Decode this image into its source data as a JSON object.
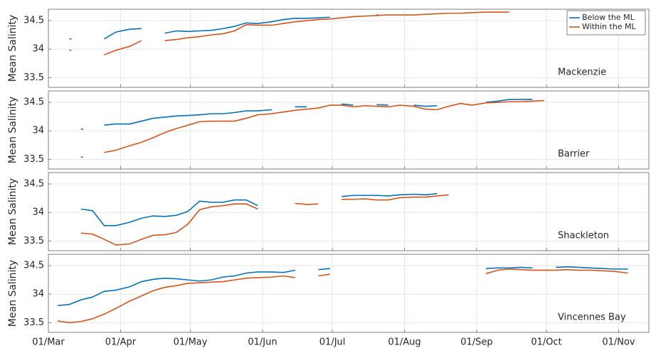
{
  "chart_data": [
    {
      "type": "line",
      "ylabel": "Mean Salinity",
      "annotation": "Mackenzie",
      "legend": "upper right",
      "grid": true,
      "x": [
        "05/Mar",
        "10/Mar",
        "15/Mar",
        "20/Mar",
        "25/Mar",
        "30/Mar",
        "05/Apr",
        "10/Apr",
        "15/Apr",
        "20/Apr",
        "25/Apr",
        "30/Apr",
        "05/May",
        "10/May",
        "15/May",
        "20/May",
        "25/May",
        "30/May",
        "05/Jun",
        "10/Jun",
        "15/Jun",
        "20/Jun",
        "25/Jun",
        "30/Jun",
        "05/Jul",
        "10/Jul",
        "15/Jul",
        "20/Jul",
        "25/Jul",
        "30/Jul",
        "05/Aug",
        "10/Aug",
        "15/Aug",
        "20/Aug",
        "25/Aug",
        "30/Aug",
        "05/Sep",
        "10/Sep",
        "15/Sep",
        "20/Sep",
        "25/Sep",
        "30/Sep",
        "05/Oct",
        "10/Oct",
        "15/Oct",
        "20/Oct",
        "25/Oct",
        "30/Oct",
        "05/Nov"
      ],
      "xlim": [
        "01/Mar",
        "14/Nov"
      ],
      "xticks": [
        "01/Mar",
        "01/Apr",
        "01/May",
        "01/Jun",
        "01/Jul",
        "01/Aug",
        "01/Sep",
        "01/Oct",
        "01/Nov"
      ],
      "ylim": [
        33.33,
        34.7
      ],
      "yticks": [
        33.5,
        34,
        34.5
      ],
      "series": [
        {
          "name": "Below the ML",
          "color": "#0072bd",
          "values": [
            null,
            34.18,
            null,
            null,
            34.18,
            34.3,
            34.35,
            34.36,
            null,
            34.28,
            34.32,
            34.31,
            34.32,
            34.33,
            34.36,
            34.4,
            34.46,
            34.45,
            34.48,
            34.52,
            34.54,
            34.54,
            34.55,
            34.56,
            null,
            null,
            null,
            34.6,
            null,
            null,
            null,
            null,
            null,
            null,
            null,
            null,
            null,
            null,
            null,
            null,
            null,
            null,
            null,
            null,
            null,
            null,
            null,
            null,
            null
          ]
        },
        {
          "name": "Within the ML",
          "color": "#d95319",
          "values": [
            null,
            33.98,
            null,
            null,
            33.9,
            33.98,
            34.05,
            34.15,
            null,
            34.15,
            34.17,
            34.2,
            34.22,
            34.25,
            34.27,
            34.32,
            34.43,
            34.42,
            34.42,
            34.45,
            34.48,
            34.5,
            34.52,
            34.53,
            34.55,
            34.57,
            34.58,
            34.59,
            34.6,
            34.6,
            34.6,
            34.61,
            34.62,
            34.63,
            34.63,
            34.64,
            34.65,
            34.65,
            34.65,
            null,
            null,
            null,
            null,
            null,
            null,
            null,
            null,
            null,
            null
          ]
        }
      ]
    },
    {
      "type": "line",
      "ylabel": "Mean Salinity",
      "annotation": "Barrier",
      "grid": true,
      "x": [
        "05/Mar",
        "10/Mar",
        "15/Mar",
        "20/Mar",
        "25/Mar",
        "30/Mar",
        "05/Apr",
        "10/Apr",
        "15/Apr",
        "20/Apr",
        "25/Apr",
        "30/Apr",
        "05/May",
        "10/May",
        "15/May",
        "20/May",
        "25/May",
        "30/May",
        "05/Jun",
        "10/Jun",
        "15/Jun",
        "20/Jun",
        "25/Jun",
        "30/Jun",
        "05/Jul",
        "10/Jul",
        "15/Jul",
        "20/Jul",
        "25/Jul",
        "30/Jul",
        "05/Aug",
        "10/Aug",
        "15/Aug",
        "20/Aug",
        "25/Aug",
        "30/Aug",
        "05/Sep",
        "10/Sep",
        "15/Sep",
        "20/Sep",
        "25/Sep",
        "30/Sep",
        "05/Oct",
        "10/Oct",
        "15/Oct",
        "20/Oct",
        "25/Oct",
        "30/Oct",
        "05/Nov"
      ],
      "xlim": [
        "01/Mar",
        "14/Nov"
      ],
      "xticks": [
        "01/Mar",
        "01/Apr",
        "01/May",
        "01/Jun",
        "01/Jul",
        "01/Aug",
        "01/Sep",
        "01/Oct",
        "01/Nov"
      ],
      "ylim": [
        33.33,
        34.7
      ],
      "yticks": [
        33.5,
        34,
        34.5
      ],
      "series": [
        {
          "color": "#0072bd",
          "values": [
            null,
            null,
            34.03,
            null,
            34.1,
            34.12,
            34.12,
            34.17,
            34.22,
            34.24,
            34.26,
            34.27,
            34.28,
            34.3,
            34.3,
            34.32,
            34.35,
            34.35,
            34.37,
            null,
            34.42,
            34.42,
            null,
            null,
            34.47,
            34.45,
            null,
            34.46,
            34.45,
            null,
            34.45,
            34.43,
            34.44,
            null,
            34.48,
            null,
            34.5,
            34.52,
            34.55,
            34.55,
            34.55,
            null,
            null,
            null,
            null,
            null,
            null,
            null,
            null
          ]
        },
        {
          "color": "#d95319",
          "values": [
            null,
            null,
            33.54,
            null,
            33.62,
            33.66,
            33.74,
            33.8,
            33.88,
            33.97,
            34.04,
            34.1,
            34.16,
            34.17,
            34.17,
            34.17,
            34.22,
            34.28,
            34.3,
            34.33,
            34.36,
            34.38,
            34.4,
            34.45,
            34.45,
            34.42,
            34.44,
            34.43,
            34.42,
            34.45,
            34.43,
            34.38,
            34.37,
            34.43,
            34.48,
            34.45,
            34.49,
            34.5,
            34.51,
            34.51,
            34.52,
            34.53,
            null,
            null,
            null,
            null,
            null,
            null,
            null
          ]
        }
      ]
    },
    {
      "type": "line",
      "ylabel": "Mean Salinity",
      "annotation": "Shackleton",
      "grid": true,
      "x": [
        "05/Mar",
        "10/Mar",
        "15/Mar",
        "20/Mar",
        "25/Mar",
        "30/Mar",
        "05/Apr",
        "10/Apr",
        "15/Apr",
        "20/Apr",
        "25/Apr",
        "30/Apr",
        "05/May",
        "10/May",
        "15/May",
        "20/May",
        "25/May",
        "30/May",
        "05/Jun",
        "10/Jun",
        "15/Jun",
        "20/Jun",
        "25/Jun",
        "30/Jun",
        "05/Jul",
        "10/Jul",
        "15/Jul",
        "20/Jul",
        "25/Jul",
        "30/Jul",
        "05/Aug",
        "10/Aug",
        "15/Aug",
        "20/Aug",
        "25/Aug",
        "30/Aug",
        "05/Sep",
        "10/Sep",
        "15/Sep",
        "20/Sep",
        "25/Sep",
        "30/Sep",
        "05/Oct",
        "10/Oct",
        "15/Oct",
        "20/Oct",
        "25/Oct",
        "30/Oct",
        "05/Nov"
      ],
      "xlim": [
        "01/Mar",
        "14/Nov"
      ],
      "xticks": [
        "01/Mar",
        "01/Apr",
        "01/May",
        "01/Jun",
        "01/Jul",
        "01/Aug",
        "01/Sep",
        "01/Oct",
        "01/Nov"
      ],
      "ylim": [
        33.33,
        34.7
      ],
      "yticks": [
        33.5,
        34,
        34.5
      ],
      "series": [
        {
          "color": "#0072bd",
          "values": [
            null,
            null,
            34.06,
            34.03,
            33.77,
            33.77,
            33.83,
            33.9,
            33.94,
            33.93,
            33.95,
            34.02,
            34.2,
            34.18,
            34.18,
            34.22,
            34.22,
            34.12,
            null,
            null,
            null,
            null,
            null,
            null,
            34.28,
            34.3,
            34.3,
            34.3,
            34.29,
            34.31,
            34.32,
            34.31,
            34.33,
            null,
            null,
            null,
            null,
            null,
            null,
            null,
            null,
            null,
            null,
            null,
            null,
            null,
            null,
            null,
            null
          ]
        },
        {
          "color": "#d95319",
          "values": [
            null,
            null,
            33.64,
            33.62,
            33.53,
            33.43,
            33.45,
            33.53,
            33.6,
            33.61,
            33.65,
            33.8,
            34.05,
            34.1,
            34.12,
            34.15,
            34.15,
            34.06,
            null,
            null,
            34.16,
            34.14,
            34.15,
            null,
            34.23,
            34.23,
            34.24,
            34.22,
            34.22,
            34.26,
            34.27,
            34.27,
            34.29,
            34.31,
            null,
            null,
            null,
            null,
            null,
            null,
            null,
            null,
            null,
            null,
            null,
            null,
            null,
            null,
            null
          ]
        }
      ]
    },
    {
      "type": "line",
      "ylabel": "Mean Salinity",
      "annotation": "Vincennes Bay",
      "grid": true,
      "x": [
        "05/Mar",
        "10/Mar",
        "15/Mar",
        "20/Mar",
        "25/Mar",
        "30/Mar",
        "05/Apr",
        "10/Apr",
        "15/Apr",
        "20/Apr",
        "25/Apr",
        "30/Apr",
        "05/May",
        "10/May",
        "15/May",
        "20/May",
        "25/May",
        "30/May",
        "05/Jun",
        "10/Jun",
        "15/Jun",
        "20/Jun",
        "25/Jun",
        "30/Jun",
        "05/Jul",
        "10/Jul",
        "15/Jul",
        "20/Jul",
        "25/Jul",
        "30/Jul",
        "05/Aug",
        "10/Aug",
        "15/Aug",
        "20/Aug",
        "25/Aug",
        "30/Aug",
        "05/Sep",
        "10/Sep",
        "15/Sep",
        "20/Sep",
        "25/Sep",
        "30/Sep",
        "05/Oct",
        "10/Oct",
        "15/Oct",
        "20/Oct",
        "25/Oct",
        "30/Oct",
        "05/Nov"
      ],
      "xlim": [
        "01/Mar",
        "14/Nov"
      ],
      "xticks": [
        "01/Mar",
        "01/Apr",
        "01/May",
        "01/Jun",
        "01/Jul",
        "01/Aug",
        "01/Sep",
        "01/Oct",
        "01/Nov"
      ],
      "ylim": [
        33.33,
        34.7
      ],
      "yticks": [
        33.5,
        34,
        34.5
      ],
      "series": [
        {
          "color": "#0072bd",
          "values": [
            33.8,
            33.82,
            33.9,
            33.95,
            34.05,
            34.07,
            34.13,
            34.22,
            34.26,
            34.28,
            34.27,
            34.25,
            34.23,
            34.25,
            34.3,
            34.32,
            34.37,
            34.39,
            34.39,
            34.38,
            34.42,
            null,
            34.43,
            34.45,
            null,
            null,
            null,
            null,
            null,
            null,
            null,
            null,
            null,
            null,
            null,
            null,
            34.45,
            34.46,
            34.46,
            34.47,
            34.46,
            null,
            34.47,
            34.48,
            34.47,
            34.46,
            34.45,
            34.44,
            34.44
          ]
        },
        {
          "color": "#d95319",
          "values": [
            33.53,
            33.5,
            33.52,
            33.57,
            33.65,
            33.75,
            33.88,
            33.97,
            34.06,
            34.12,
            34.15,
            34.19,
            34.2,
            34.21,
            34.22,
            34.25,
            34.28,
            34.29,
            34.3,
            34.32,
            34.29,
            null,
            34.32,
            34.35,
            null,
            null,
            null,
            null,
            null,
            null,
            null,
            null,
            null,
            null,
            null,
            null,
            34.36,
            34.42,
            34.44,
            34.43,
            34.42,
            34.42,
            34.42,
            34.43,
            34.42,
            34.42,
            34.41,
            34.4,
            34.37
          ]
        }
      ]
    }
  ]
}
